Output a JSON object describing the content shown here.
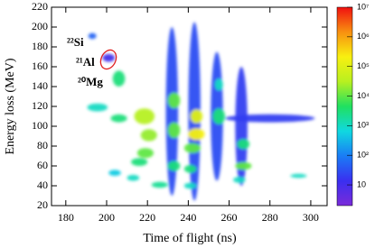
{
  "chart_data": {
    "type": "density",
    "x_label": "Time of flight (ns)",
    "y_label": "Energy loss (MeV)",
    "xlim": [
      173,
      308
    ],
    "xticks": [
      180,
      200,
      220,
      240,
      260,
      280,
      300
    ],
    "ylim": [
      20,
      220
    ],
    "yticks": [
      20,
      40,
      60,
      80,
      100,
      120,
      140,
      160,
      180,
      200,
      220
    ],
    "zlim": [
      2,
      10000000
    ],
    "zscale": "log",
    "zticks": [
      10,
      {
        "value": 100,
        "label": "10²"
      },
      {
        "value": 1000,
        "label": "10³"
      },
      {
        "value": 10000,
        "label": "10⁴"
      },
      {
        "value": 100000,
        "label": "10⁵"
      },
      {
        "value": 1000000,
        "label": "10⁶"
      },
      {
        "value": 10000000,
        "label": "10⁷"
      }
    ],
    "colormap": [
      "#7a2bd9",
      "#3a2ff0",
      "#1a7cf5",
      "#10d8e0",
      "#20e060",
      "#b8f020",
      "#f8f010",
      "#f89010",
      "#f01010"
    ],
    "annotations": [
      "²²Si",
      "²¹Al",
      "²⁰Mg"
    ],
    "blobs": [
      {
        "x": 232,
        "y": 115,
        "sx": 3,
        "sy": 85,
        "count": 30
      },
      {
        "x": 243,
        "y": 115,
        "sx": 3,
        "sy": 90,
        "count": 30
      },
      {
        "x": 254,
        "y": 110,
        "sx": 3,
        "sy": 65,
        "count": 30
      },
      {
        "x": 266,
        "y": 100,
        "sx": 3,
        "sy": 60,
        "count": 20
      },
      {
        "x": 280,
        "y": 108,
        "sx": 22,
        "sy": 4,
        "count": 20
      },
      {
        "x": 201,
        "y": 169,
        "sx": 3,
        "sy": 4,
        "count": 10
      },
      {
        "x": 193,
        "y": 191,
        "sx": 2,
        "sy": 3,
        "count": 50
      },
      {
        "x": 195.5,
        "y": 119,
        "sx": 5,
        "sy": 4,
        "count": 1000
      },
      {
        "x": 206,
        "y": 148,
        "sx": 3,
        "sy": 8,
        "count": 3000
      },
      {
        "x": 206,
        "y": 108,
        "sx": 4,
        "sy": 4,
        "count": 3000
      },
      {
        "x": 204,
        "y": 53,
        "sx": 3,
        "sy": 3,
        "count": 500
      },
      {
        "x": 213,
        "y": 48,
        "sx": 3,
        "sy": 3,
        "count": 1000
      },
      {
        "x": 226,
        "y": 41,
        "sx": 4,
        "sy": 3,
        "count": 2000
      },
      {
        "x": 216,
        "y": 64,
        "sx": 4,
        "sy": 4,
        "count": 3000
      },
      {
        "x": 219,
        "y": 73,
        "sx": 4,
        "sy": 5,
        "count": 10000
      },
      {
        "x": 220.7,
        "y": 91,
        "sx": 4,
        "sy": 6,
        "count": 20000
      },
      {
        "x": 218.5,
        "y": 110,
        "sx": 5,
        "sy": 8,
        "count": 30000
      },
      {
        "x": 233,
        "y": 126,
        "sx": 3,
        "sy": 8,
        "count": 10000
      },
      {
        "x": 233,
        "y": 96,
        "sx": 3,
        "sy": 8,
        "count": 10000
      },
      {
        "x": 233,
        "y": 60,
        "sx": 3,
        "sy": 5,
        "count": 3000
      },
      {
        "x": 244,
        "y": 110,
        "sx": 3,
        "sy": 7,
        "count": 100000
      },
      {
        "x": 244,
        "y": 92,
        "sx": 4,
        "sy": 6,
        "count": 200000
      },
      {
        "x": 242,
        "y": 78,
        "sx": 4,
        "sy": 5,
        "count": 10000
      },
      {
        "x": 241,
        "y": 57,
        "sx": 3,
        "sy": 4,
        "count": 3000
      },
      {
        "x": 241,
        "y": 40,
        "sx": 3,
        "sy": 3,
        "count": 1000
      },
      {
        "x": 255,
        "y": 142,
        "sx": 2,
        "sy": 6,
        "count": 1000
      },
      {
        "x": 255,
        "y": 110,
        "sx": 3,
        "sy": 8,
        "count": 3000
      },
      {
        "x": 267,
        "y": 82,
        "sx": 3,
        "sy": 5,
        "count": 3000
      },
      {
        "x": 267,
        "y": 60,
        "sx": 4,
        "sy": 4,
        "count": 10000
      },
      {
        "x": 265,
        "y": 46,
        "sx": 3,
        "sy": 3,
        "count": 1000
      },
      {
        "x": 294,
        "y": 50,
        "sx": 4,
        "sy": 2,
        "count": 1000
      }
    ]
  }
}
